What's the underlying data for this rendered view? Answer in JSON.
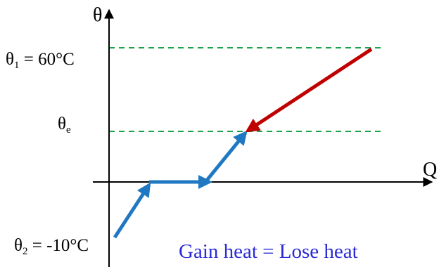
{
  "diagram": {
    "axis_y_label": "θ",
    "axis_x_label": "Q",
    "label_theta1": {
      "symbol": "θ",
      "sub": "1",
      "rest": " = 60°C"
    },
    "label_thetae": {
      "symbol": "θ",
      "sub": "e"
    },
    "label_theta2": {
      "symbol": "θ",
      "sub": "2",
      "rest": " = -10°C"
    },
    "caption": "Gain heat = Lose heat",
    "colors": {
      "axis": "#000000",
      "dashed": "#1aa34a",
      "heating_arrow": "#1f78c1",
      "cooling_arrow": "#c00000",
      "caption": "#2a2ad8"
    }
  }
}
